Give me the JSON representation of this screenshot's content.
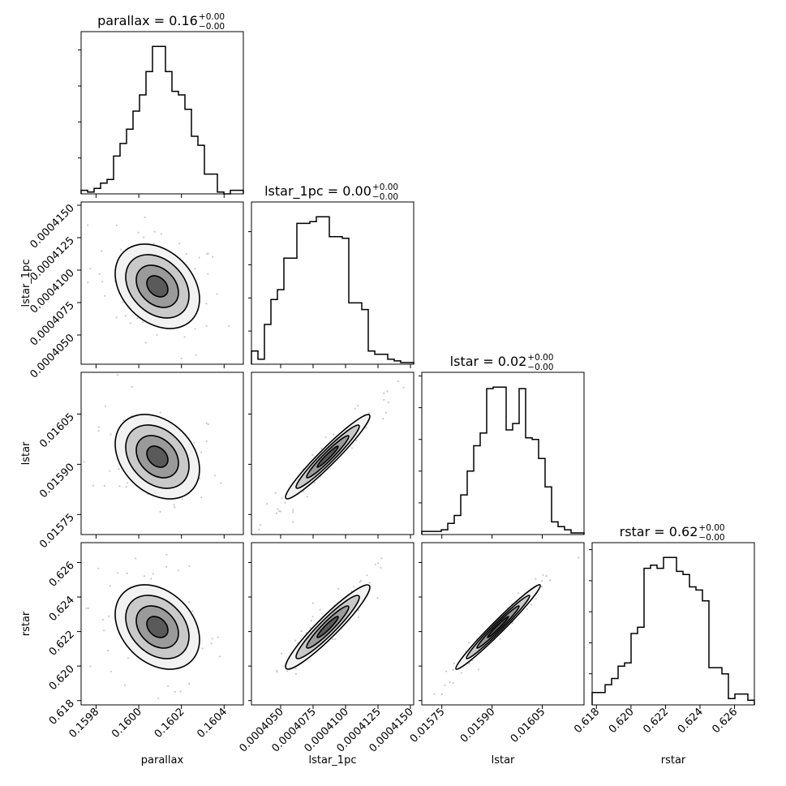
{
  "chart_data": {
    "type": "corner",
    "parameters": [
      "parallax",
      "lstar_1pc",
      "lstar",
      "rstar"
    ],
    "axis_labels": [
      "parallax",
      "lstar_1pc",
      "lstar",
      "rstar"
    ],
    "titles": [
      {
        "text": "parallax = 0.16",
        "sup": "+0.00",
        "sub": "−0.00"
      },
      {
        "text": "lstar_1pc = 0.00",
        "sup": "+0.00",
        "sub": "−0.00"
      },
      {
        "text": "lstar = 0.02",
        "sup": "+0.00",
        "sub": "−0.00"
      },
      {
        "text": "rstar = 0.62",
        "sup": "+0.00",
        "sub": "−0.00"
      }
    ],
    "ranges": [
      [
        0.15973,
        0.16049
      ],
      [
        0.00040275,
        0.00041525
      ],
      [
        0.01569,
        0.016175
      ],
      [
        0.61775,
        0.62715
      ]
    ],
    "ticks": [
      [
        0.1598,
        0.16,
        0.1602,
        0.1604
      ],
      [
        0.000405,
        0.0004075,
        0.00041,
        0.0004125,
        0.000415
      ],
      [
        0.01575,
        0.0159,
        0.01605
      ],
      [
        0.618,
        0.62,
        0.622,
        0.624,
        0.626
      ]
    ],
    "tick_labels": [
      [
        "0.1598",
        "0.1600",
        "0.1602",
        "0.1604"
      ],
      [
        "0.0004050",
        "0.0004075",
        "0.0004100",
        "0.0004125",
        "0.0004150"
      ],
      [
        "0.01575",
        "0.01590",
        "0.01605"
      ],
      [
        "0.618",
        "0.620",
        "0.622",
        "0.624",
        "0.626"
      ]
    ],
    "y_tick_labels": [
      [],
      [
        "0.0004050",
        "0.0004075",
        "0.0004100",
        "0.0004125",
        "0.0004150"
      ],
      [
        "0.01575",
        "0.01590",
        "0.01605"
      ],
      [
        "0.618",
        "0.620",
        "0.622",
        "0.624",
        "0.626"
      ]
    ],
    "hist_edges": [
      [
        0.15973,
        0.16049
      ],
      [
        0.00040275,
        0.00041525
      ],
      [
        0.01569,
        0.016175
      ],
      [
        0.61775,
        0.62715
      ]
    ],
    "hist_counts": [
      [
        2,
        1,
        3,
        6,
        8,
        21,
        28,
        36,
        46,
        55,
        68,
        82,
        82,
        68,
        57,
        55,
        47,
        32,
        27,
        11,
        11,
        1,
        0,
        2,
        2
      ],
      [
        8,
        3,
        24,
        39,
        45,
        64,
        64,
        85,
        85,
        86,
        89,
        89,
        77,
        77,
        76,
        37,
        37,
        33,
        8,
        6,
        6,
        3,
        2,
        1,
        1
      ],
      [
        2,
        2,
        2,
        3,
        7,
        12,
        25,
        40,
        56,
        64,
        92,
        93,
        93,
        66,
        70,
        92,
        61,
        60,
        48,
        30,
        8,
        5,
        3,
        1,
        1
      ],
      [
        8,
        8,
        13,
        17,
        25,
        27,
        46,
        50,
        88,
        90,
        88,
        95,
        95,
        86,
        84,
        76,
        74,
        67,
        24,
        24,
        20,
        4,
        7,
        7,
        3
      ]
    ]
  }
}
